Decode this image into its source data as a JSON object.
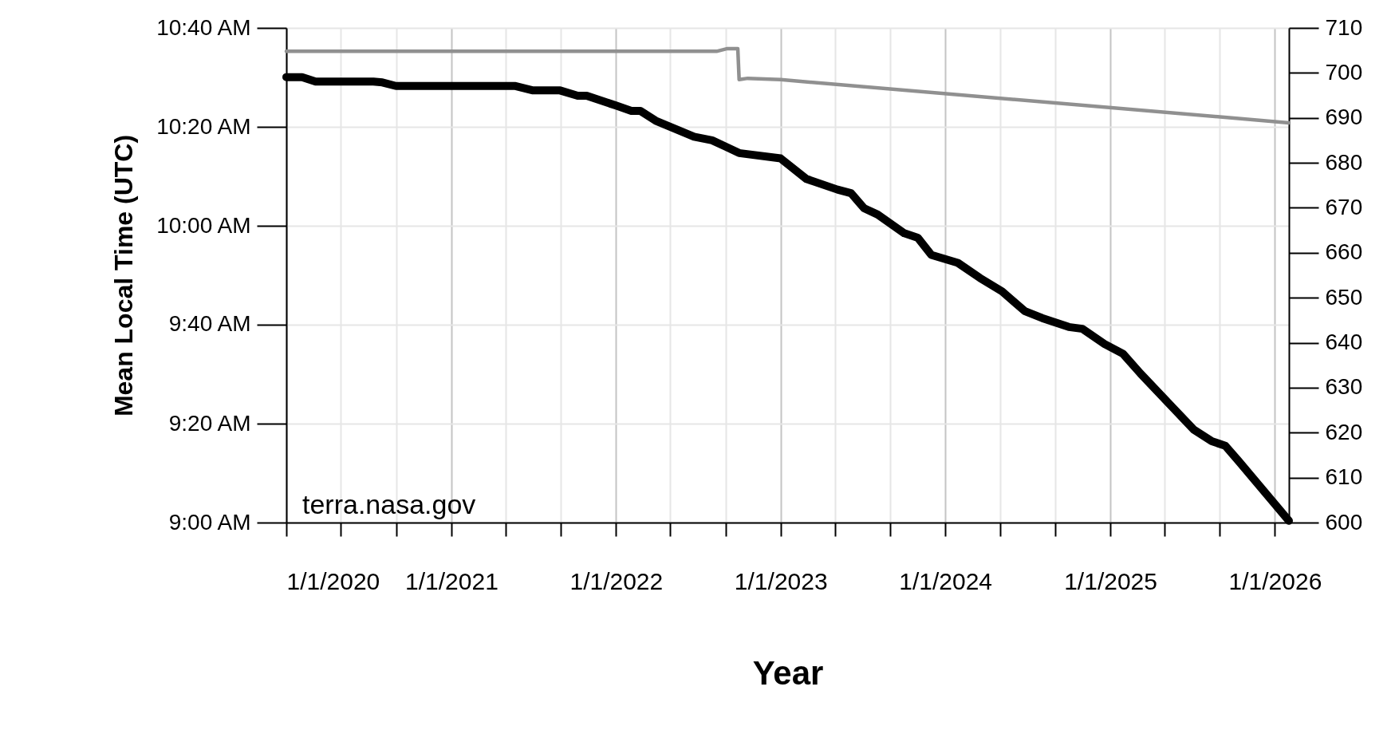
{
  "chart_data": {
    "type": "line",
    "xlabel": "Year",
    "ylabel": "Mean Local Time (UTC)",
    "x": [
      "2020-01-01",
      "2020-02-05",
      "2020-03-06",
      "2020-07-12",
      "2020-08-01",
      "2020-08-31",
      "2021-05-23",
      "2021-07-01",
      "2021-08-30",
      "2021-10-08",
      "2021-10-28",
      "2022-01-01",
      "2022-02-04",
      "2022-02-24",
      "2022-03-30",
      "2022-06-23",
      "2022-08-02",
      "2022-09-01",
      "2022-10-01",
      "2023-01-01",
      "2023-02-27",
      "2023-05-07",
      "2023-06-06",
      "2023-07-05",
      "2023-08-04",
      "2023-10-02",
      "2023-11-01",
      "2023-12-01",
      "2024-01-29",
      "2024-03-18",
      "2024-05-06",
      "2024-06-25",
      "2024-08-03",
      "2024-10-01",
      "2024-10-31",
      "2024-12-19",
      "2025-01-29",
      "2025-03-09",
      "2025-07-05",
      "2025-08-14",
      "2025-09-13",
      "2025-10-12",
      "2026-02-01"
    ],
    "series": [
      {
        "color": "#000000",
        "values": [
          10.501,
          10.501,
          10.486,
          10.486,
          10.483,
          10.471,
          10.471,
          10.456,
          10.456,
          10.438,
          10.438,
          10.405,
          10.387,
          10.387,
          10.354,
          10.3,
          10.288,
          10.267,
          10.245,
          10.227,
          10.158,
          10.122,
          10.11,
          10.059,
          10.038,
          9.975,
          9.96,
          9.902,
          9.875,
          9.824,
          9.779,
          9.713,
          9.689,
          9.659,
          9.653,
          9.602,
          9.569,
          9.502,
          9.313,
          9.274,
          9.259,
          9.208,
          9.006
        ]
      },
      {
        "color": "#909090",
        "axis": "y2",
        "x": [
          "2020-01-01",
          "2022-08-12",
          "2022-09-05",
          "2022-09-28",
          "2022-10-01",
          "2022-10-20",
          "2023-01-01",
          "2026-02-01"
        ],
        "values": [
          704.8,
          704.8,
          705.4,
          705.4,
          698.5,
          698.8,
          698.5,
          688.9
        ]
      }
    ],
    "xlim": [
      "2020-01-01",
      "2026-02-01"
    ],
    "xticks": [
      {
        "value": "2020-01-01",
        "label": "1/1/2020"
      },
      {
        "value": "2020-05-01",
        "label": null
      },
      {
        "value": "2020-09-01",
        "label": null
      },
      {
        "value": "2021-01-01",
        "label": "1/1/2021"
      },
      {
        "value": "2021-05-01",
        "label": null
      },
      {
        "value": "2021-09-01",
        "label": null
      },
      {
        "value": "2022-01-01",
        "label": "1/1/2022"
      },
      {
        "value": "2022-05-01",
        "label": null
      },
      {
        "value": "2022-09-01",
        "label": null
      },
      {
        "value": "2023-01-01",
        "label": "1/1/2023"
      },
      {
        "value": "2023-05-01",
        "label": null
      },
      {
        "value": "2023-09-01",
        "label": null
      },
      {
        "value": "2024-01-01",
        "label": "1/1/2024"
      },
      {
        "value": "2024-05-01",
        "label": null
      },
      {
        "value": "2024-09-01",
        "label": null
      },
      {
        "value": "2025-01-01",
        "label": "1/1/2025"
      },
      {
        "value": "2025-05-01",
        "label": null
      },
      {
        "value": "2025-09-01",
        "label": null
      },
      {
        "value": "2026-01-01",
        "label": "1/1/2026"
      }
    ],
    "ylim": [
      9,
      10.666667
    ],
    "yticks": [
      {
        "value": 9,
        "label": "9:00 AM"
      },
      {
        "value": 9.333333,
        "label": "9:20 AM"
      },
      {
        "value": 9.666667,
        "label": "9:40 AM"
      },
      {
        "value": 10,
        "label": "10:00 AM"
      },
      {
        "value": 10.333333,
        "label": "10:20 AM"
      },
      {
        "value": 10.666667,
        "label": "10:40 AM"
      }
    ],
    "y2lim": [
      600,
      710
    ],
    "y2ticks": [
      600,
      610,
      620,
      630,
      640,
      650,
      660,
      670,
      680,
      690,
      700,
      710
    ],
    "grid": true,
    "annotations": [
      "terra.nasa.gov"
    ]
  }
}
